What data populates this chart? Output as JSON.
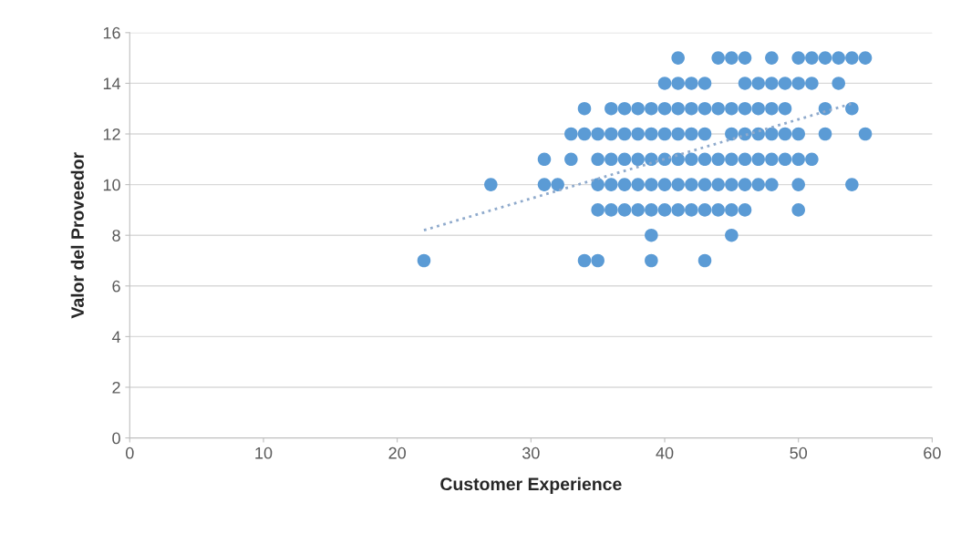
{
  "chart_data": {
    "type": "scatter",
    "xlabel": "Customer Experience",
    "ylabel": "Valor del Proveedor",
    "xlim": [
      0,
      60
    ],
    "xticks": [
      0,
      10,
      20,
      30,
      40,
      50,
      60
    ],
    "ylim": [
      0,
      16
    ],
    "yticks": [
      0,
      2,
      4,
      6,
      8,
      10,
      12,
      14,
      16
    ],
    "grid": "y",
    "marker": "circle",
    "series": [
      {
        "color": "#5b9bd5",
        "x": [
          41,
          44,
          45,
          46,
          48,
          50,
          51,
          52,
          53,
          54,
          55,
          40,
          41,
          42,
          43,
          46,
          47,
          48,
          49,
          50,
          51,
          53,
          34,
          36,
          37,
          38,
          39,
          40,
          41,
          42,
          43,
          44,
          45,
          46,
          47,
          48,
          49,
          52,
          54,
          33,
          34,
          35,
          36,
          37,
          38,
          39,
          40,
          41,
          42,
          43,
          45,
          46,
          47,
          48,
          49,
          50,
          52,
          55,
          31,
          33,
          35,
          36,
          37,
          38,
          39,
          40,
          41,
          42,
          43,
          44,
          45,
          46,
          47,
          48,
          49,
          50,
          51,
          27,
          31,
          32,
          35,
          36,
          37,
          38,
          39,
          40,
          41,
          42,
          43,
          44,
          45,
          46,
          47,
          48,
          50,
          54,
          35,
          36,
          37,
          38,
          39,
          40,
          41,
          42,
          43,
          44,
          45,
          46,
          50,
          39,
          45,
          22,
          34,
          35,
          39,
          43
        ],
        "values": [
          15,
          15,
          15,
          15,
          15,
          15,
          15,
          15,
          15,
          15,
          15,
          14,
          14,
          14,
          14,
          14,
          14,
          14,
          14,
          14,
          14,
          14,
          13,
          13,
          13,
          13,
          13,
          13,
          13,
          13,
          13,
          13,
          13,
          13,
          13,
          13,
          13,
          13,
          13,
          12,
          12,
          12,
          12,
          12,
          12,
          12,
          12,
          12,
          12,
          12,
          12,
          12,
          12,
          12,
          12,
          12,
          12,
          12,
          11,
          11,
          11,
          11,
          11,
          11,
          11,
          11,
          11,
          11,
          11,
          11,
          11,
          11,
          11,
          11,
          11,
          11,
          11,
          10,
          10,
          10,
          10,
          10,
          10,
          10,
          10,
          10,
          10,
          10,
          10,
          10,
          10,
          10,
          10,
          10,
          10,
          10,
          9,
          9,
          9,
          9,
          9,
          9,
          9,
          9,
          9,
          9,
          9,
          9,
          9,
          8,
          8,
          7,
          7,
          7,
          7,
          7
        ]
      },
      {
        "type": "line",
        "color": "#8faacc",
        "line_style": "dotted",
        "marker": "none",
        "x": [
          22,
          54
        ],
        "values": [
          8.2,
          13.2
        ]
      }
    ]
  }
}
